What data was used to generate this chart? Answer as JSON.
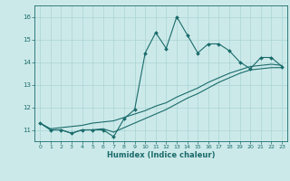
{
  "xlabel": "Humidex (Indice chaleur)",
  "background_color": "#cce9e9",
  "grid_color": "#aad4d4",
  "line_color": "#1a6b6b",
  "x_data": [
    0,
    1,
    2,
    3,
    4,
    5,
    6,
    7,
    8,
    9,
    10,
    11,
    12,
    13,
    14,
    15,
    16,
    17,
    18,
    19,
    20,
    21,
    22,
    23
  ],
  "y_main": [
    11.3,
    11.0,
    11.0,
    10.85,
    11.0,
    11.0,
    11.0,
    10.7,
    11.5,
    11.9,
    14.4,
    15.3,
    14.6,
    16.0,
    15.2,
    14.4,
    14.8,
    14.8,
    14.5,
    14.0,
    13.7,
    14.2,
    14.2,
    13.8
  ],
  "y_line_upper": [
    11.3,
    11.05,
    11.1,
    11.15,
    11.2,
    11.3,
    11.35,
    11.4,
    11.55,
    11.7,
    11.85,
    12.05,
    12.2,
    12.45,
    12.65,
    12.85,
    13.1,
    13.3,
    13.5,
    13.65,
    13.8,
    13.85,
    13.9,
    13.85
  ],
  "y_line_lower": [
    11.3,
    11.0,
    11.0,
    10.85,
    11.0,
    11.0,
    11.05,
    10.9,
    11.1,
    11.3,
    11.5,
    11.7,
    11.9,
    12.15,
    12.4,
    12.6,
    12.85,
    13.1,
    13.3,
    13.5,
    13.65,
    13.7,
    13.75,
    13.75
  ],
  "xlim": [
    -0.5,
    23.5
  ],
  "ylim": [
    10.5,
    16.5
  ],
  "yticks": [
    11,
    12,
    13,
    14,
    15,
    16
  ],
  "xticks": [
    0,
    1,
    2,
    3,
    4,
    5,
    6,
    7,
    8,
    9,
    10,
    11,
    12,
    13,
    14,
    15,
    16,
    17,
    18,
    19,
    20,
    21,
    22,
    23
  ]
}
